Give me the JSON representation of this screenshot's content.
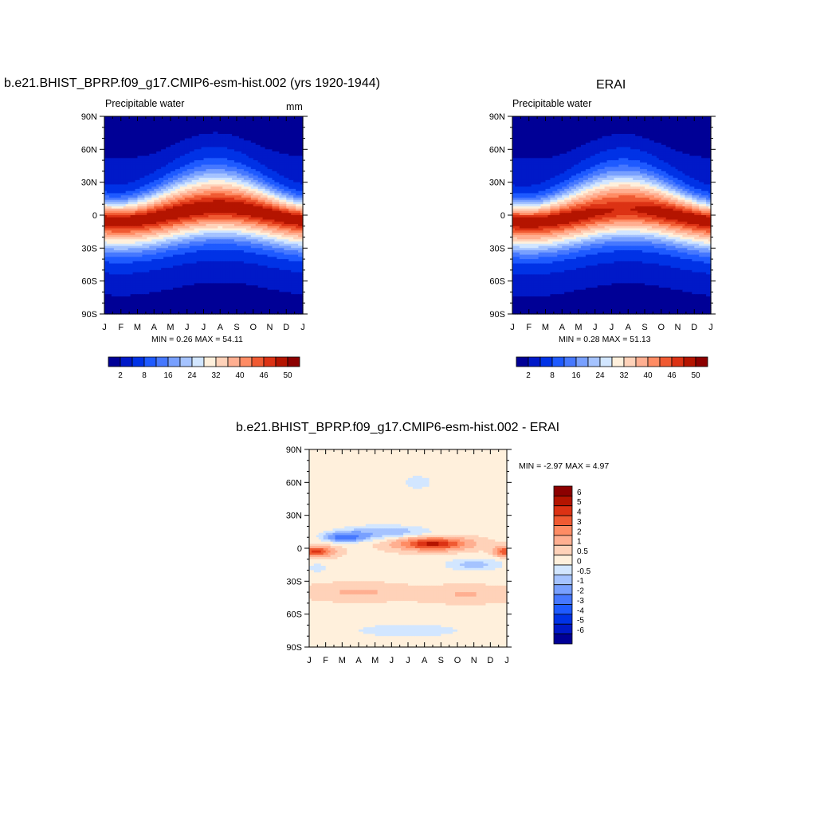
{
  "panels": {
    "model": {
      "title": "b.e21.BHIST_BPRP.f09_g17.CMIP6-esm-hist.002 (yrs 1920-1944)",
      "left_label": "Precipitable water",
      "right_label": "mm",
      "stats": "MIN =   0.26 MAX =  54.11"
    },
    "obs": {
      "title": "ERAI",
      "left_label": "Precipitable water",
      "stats": "MIN =   0.28 MAX =  51.13"
    },
    "diff": {
      "title": "b.e21.BHIST_BPRP.f09_g17.CMIP6-esm-hist.002 - ERAI",
      "stats": "MIN =  -2.97 MAX =   4.97"
    }
  },
  "chart_data": [
    {
      "type": "heatmap",
      "title": "b.e21.BHIST_BPRP.f09_g17.CMIP6-esm-hist.002 (yrs 1920-1944)",
      "x_ticks": [
        "J",
        "F",
        "M",
        "A",
        "M",
        "J",
        "J",
        "A",
        "S",
        "O",
        "N",
        "D",
        "J"
      ],
      "y_ticks": [
        "90N",
        "60N",
        "30N",
        "0",
        "30S",
        "60S",
        "90S"
      ],
      "ylim": [
        -90,
        90
      ],
      "min": 0.26,
      "max": 54.11,
      "colorbar_labels": [
        "2",
        "8",
        "16",
        "24",
        "32",
        "40",
        "46",
        "50"
      ],
      "colorbar_colors": [
        "#000096",
        "#0019c8",
        "#0032e6",
        "#1e5aff",
        "#4678ff",
        "#78a0ff",
        "#a5c3ff",
        "#d2e6ff",
        "#fff0dc",
        "#ffd2b9",
        "#ffaf91",
        "#ff8c64",
        "#f05a32",
        "#dc3214",
        "#b41400",
        "#8c0000"
      ]
    },
    {
      "type": "heatmap",
      "title": "ERAI",
      "x_ticks": [
        "J",
        "F",
        "M",
        "A",
        "M",
        "J",
        "J",
        "A",
        "S",
        "O",
        "N",
        "D",
        "J"
      ],
      "y_ticks": [
        "90N",
        "60N",
        "30N",
        "0",
        "30S",
        "60S",
        "90S"
      ],
      "ylim": [
        -90,
        90
      ],
      "min": 0.28,
      "max": 51.13,
      "colorbar_labels": [
        "2",
        "8",
        "16",
        "24",
        "32",
        "40",
        "46",
        "50"
      ],
      "colorbar_colors": [
        "#000096",
        "#0019c8",
        "#0032e6",
        "#1e5aff",
        "#4678ff",
        "#78a0ff",
        "#a5c3ff",
        "#d2e6ff",
        "#fff0dc",
        "#ffd2b9",
        "#ffaf91",
        "#ff8c64",
        "#f05a32",
        "#dc3214",
        "#b41400",
        "#8c0000"
      ]
    },
    {
      "type": "heatmap",
      "title": "b.e21.BHIST_BPRP.f09_g17.CMIP6-esm-hist.002 - ERAI",
      "x_ticks": [
        "J",
        "F",
        "M",
        "A",
        "M",
        "J",
        "J",
        "A",
        "S",
        "O",
        "N",
        "D",
        "J"
      ],
      "y_ticks": [
        "90N",
        "60N",
        "30N",
        "0",
        "30S",
        "60S",
        "90S"
      ],
      "ylim": [
        -90,
        90
      ],
      "min": -2.97,
      "max": 4.97,
      "colorbar_labels": [
        "6",
        "5",
        "4",
        "3",
        "2",
        "1",
        "0.5",
        "0",
        "-0.5",
        "-1",
        "-2",
        "-3",
        "-4",
        "-5",
        "-6"
      ],
      "colorbar_colors": [
        "#8c0000",
        "#b41400",
        "#dc3214",
        "#f05a32",
        "#ff8c64",
        "#ffaf91",
        "#ffd2b9",
        "#fff0dc",
        "#d2e6ff",
        "#a5c3ff",
        "#78a0ff",
        "#4678ff",
        "#1e5aff",
        "#0032e6",
        "#0019c8",
        "#000096"
      ]
    }
  ]
}
